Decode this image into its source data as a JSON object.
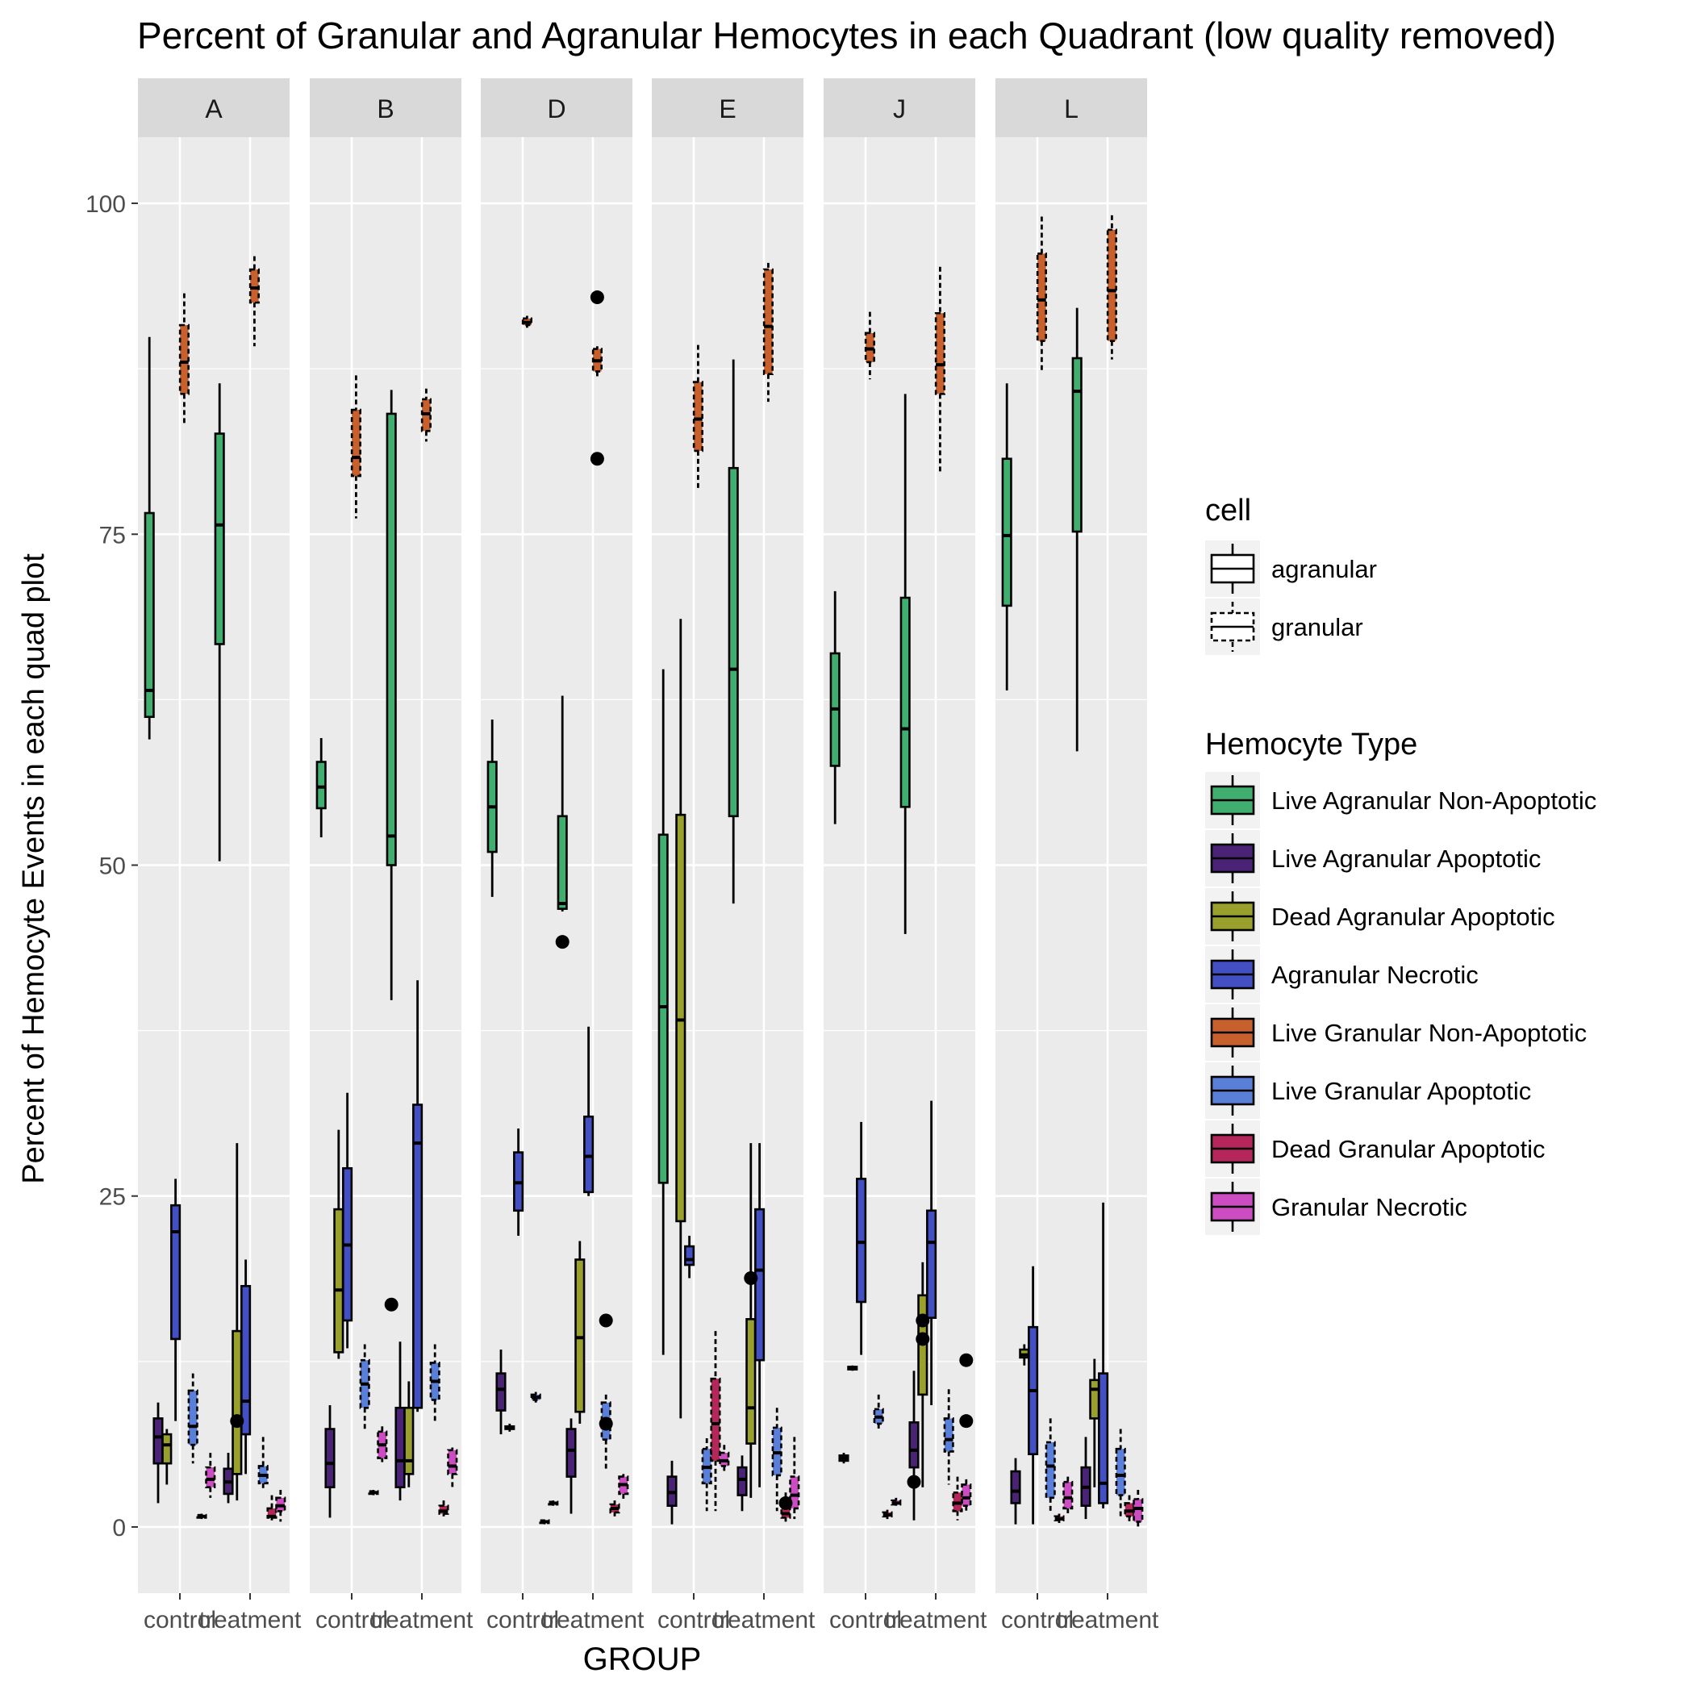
{
  "chart_data": {
    "type": "box",
    "title": "Percent of Granular and Agranular Hemocytes in each Quadrant (low quality removed)",
    "xlabel": "GROUP",
    "ylabel": "Percent of Hemocyte Events in each quad plot",
    "ylim": [
      -5,
      105
    ],
    "yticks": [
      0,
      25,
      50,
      75,
      100
    ],
    "grid": true,
    "legend_position": "right",
    "groups": [
      "control",
      "treatment"
    ],
    "facets": [
      "A",
      "B",
      "D",
      "E",
      "J",
      "L"
    ],
    "legend_cell": {
      "title": "cell",
      "items": [
        {
          "label": "agranular",
          "linetype": "solid"
        },
        {
          "label": "granular",
          "linetype": "dashed"
        }
      ]
    },
    "legend_type": {
      "title": "Hemocyte Type",
      "items": [
        {
          "label": "Live Agranular Non-Apoptotic",
          "color": "#3FAE6E",
          "cell": "agranular"
        },
        {
          "label": "Live Agranular Apoptotic",
          "color": "#4A2377",
          "cell": "agranular"
        },
        {
          "label": "Dead Agranular Apoptotic",
          "color": "#9AA02C",
          "cell": "agranular"
        },
        {
          "label": "Agranular Necrotic",
          "color": "#4350C4",
          "cell": "agranular"
        },
        {
          "label": "Live Granular Non-Apoptotic",
          "color": "#C8602E",
          "cell": "granular"
        },
        {
          "label": "Live Granular Apoptotic",
          "color": "#5A7FD9",
          "cell": "granular"
        },
        {
          "label": "Dead Granular Apoptotic",
          "color": "#B5275A",
          "cell": "granular"
        },
        {
          "label": "Granular Necrotic",
          "color": "#CC4DC2",
          "cell": "granular"
        }
      ]
    },
    "series_stats_note": "stats per type: [min, q1, median, q3, max] for control then treatment; outliers listed separately",
    "panels": [
      {
        "facet": "A",
        "control": [
          [
            59.5,
            61.2,
            63.2,
            76.6,
            89.9
          ],
          [
            1.8,
            4.8,
            6.8,
            8.2,
            9.4
          ],
          [
            3.2,
            4.8,
            6.2,
            7.0,
            7.4
          ],
          [
            8.0,
            14.2,
            22.3,
            24.3,
            26.3
          ],
          [
            83.4,
            85.6,
            88.0,
            90.8,
            93.2
          ],
          [
            4.8,
            6.2,
            7.6,
            10.3,
            11.6
          ],
          [
            0.6,
            0.7,
            0.8,
            0.9,
            1.0
          ],
          [
            2.2,
            3.0,
            3.6,
            4.5,
            5.6
          ]
        ],
        "treatment": [
          [
            50.3,
            66.7,
            75.7,
            82.6,
            86.4
          ],
          [
            1.8,
            2.5,
            3.4,
            4.4,
            5.6
          ],
          [
            2.0,
            4.0,
            8.0,
            14.8,
            29.0
          ],
          [
            4.0,
            7.0,
            9.5,
            18.2,
            20.2
          ],
          [
            89.2,
            92.5,
            93.6,
            95.0,
            96.0
          ],
          [
            2.8,
            3.3,
            3.9,
            4.6,
            6.8
          ],
          [
            0.5,
            0.7,
            0.8,
            1.4,
            2.4
          ],
          [
            0.4,
            1.2,
            1.6,
            2.2,
            2.8
          ]
        ],
        "outliers": [
          {
            "group": "treatment",
            "type": 2,
            "value": 8.0
          }
        ]
      },
      {
        "facet": "B",
        "control": [
          [
            52.1,
            54.3,
            55.9,
            57.8,
            59.6
          ],
          [
            0.7,
            3.0,
            4.8,
            7.4,
            9.2
          ],
          [
            12.7,
            13.2,
            17.9,
            24.0,
            30.0
          ],
          [
            13.5,
            15.6,
            21.3,
            27.1,
            32.8
          ],
          [
            76.2,
            79.4,
            80.8,
            84.4,
            87.0
          ],
          [
            7.4,
            9.0,
            10.8,
            12.6,
            13.8
          ],
          [
            2.4,
            2.5,
            2.6,
            2.7,
            2.8
          ],
          [
            4.9,
            5.2,
            6.2,
            7.2,
            7.6
          ]
        ],
        "treatment": [
          [
            39.8,
            50.0,
            52.2,
            84.1,
            85.9
          ],
          [
            2.0,
            3.0,
            5.0,
            9.0,
            14.0
          ],
          [
            3.0,
            4.0,
            5.0,
            9.0,
            11.0
          ],
          [
            8.7,
            9.0,
            29.0,
            31.9,
            41.3
          ],
          [
            82.0,
            82.8,
            84.1,
            85.2,
            86.0
          ],
          [
            8.0,
            9.6,
            11.0,
            12.4,
            13.8
          ],
          [
            0.8,
            1.0,
            1.2,
            1.6,
            2.0
          ],
          [
            3.0,
            4.0,
            4.6,
            5.8,
            6.0
          ]
        ],
        "outliers": [
          {
            "group": "treatment",
            "type": 0,
            "value": 16.8
          }
        ]
      },
      {
        "facet": "D",
        "control": [
          [
            47.6,
            51.0,
            54.4,
            57.8,
            61.0
          ],
          [
            7.0,
            8.8,
            10.4,
            11.6,
            13.4
          ],
          [
            7.2,
            7.4,
            7.5,
            7.6,
            7.8
          ],
          [
            22.0,
            23.9,
            26.0,
            28.3,
            30.1
          ],
          [
            90.6,
            90.8,
            91.0,
            91.3,
            91.5
          ],
          [
            9.4,
            9.6,
            9.8,
            10.0,
            10.2
          ],
          [
            0.2,
            0.3,
            0.4,
            0.5,
            0.5
          ],
          [
            1.6,
            1.7,
            1.8,
            1.9,
            2.0
          ]
        ],
        "treatment": [
          [
            46.5,
            46.7,
            47.1,
            53.7,
            62.8
          ],
          [
            1.0,
            3.8,
            5.8,
            7.4,
            8.2
          ],
          [
            7.8,
            8.7,
            14.3,
            20.2,
            21.6
          ],
          [
            25.0,
            25.3,
            28.0,
            31.0,
            37.8
          ],
          [
            86.9,
            87.3,
            88.1,
            89.0,
            89.2
          ],
          [
            4.4,
            6.6,
            7.8,
            9.4,
            10.0
          ],
          [
            0.8,
            1.1,
            1.4,
            1.7,
            2.0
          ],
          [
            2.0,
            2.5,
            3.2,
            3.8,
            4.0
          ]
        ],
        "outliers": [
          {
            "group": "treatment",
            "type": 4,
            "value": 92.9
          },
          {
            "group": "treatment",
            "type": 4,
            "value": 80.7
          },
          {
            "group": "treatment",
            "type": 0,
            "value": 44.2
          },
          {
            "group": "treatment",
            "type": 5,
            "value": 15.6
          },
          {
            "group": "treatment",
            "type": 5,
            "value": 7.8
          }
        ]
      },
      {
        "facet": "E",
        "control": [
          [
            13.0,
            26.0,
            39.3,
            52.3,
            64.8
          ],
          [
            0.2,
            1.6,
            2.6,
            3.8,
            5.0
          ],
          [
            8.2,
            23.1,
            38.3,
            53.8,
            68.6
          ],
          [
            18.8,
            19.8,
            20.2,
            21.2,
            22.0
          ],
          [
            78.5,
            81.3,
            83.7,
            86.5,
            89.3
          ],
          [
            1.2,
            3.3,
            4.5,
            5.9,
            6.7
          ],
          [
            1.2,
            5.0,
            7.8,
            11.2,
            14.8
          ],
          [
            4.0,
            4.6,
            5.0,
            5.6,
            6.2
          ]
        ],
        "treatment": [
          [
            47.1,
            53.7,
            64.8,
            80.0,
            88.2
          ],
          [
            1.2,
            2.4,
            3.6,
            4.5,
            5.4
          ],
          [
            2.2,
            6.3,
            9.0,
            15.7,
            29.0
          ],
          [
            3.0,
            12.6,
            19.4,
            24.0,
            29.0
          ],
          [
            85.0,
            87.1,
            90.7,
            95.0,
            95.5
          ],
          [
            1.2,
            3.9,
            5.6,
            7.5,
            9.0
          ],
          [
            0.4,
            0.7,
            1.0,
            1.6,
            2.6
          ],
          [
            0.6,
            1.4,
            2.4,
            3.8,
            6.8
          ]
        ],
        "outliers": [
          {
            "group": "treatment",
            "type": 2,
            "value": 18.8
          },
          {
            "group": "treatment",
            "type": 6,
            "value": 1.8
          }
        ]
      },
      {
        "facet": "J",
        "control": [
          [
            53.1,
            57.5,
            61.8,
            66.0,
            70.7
          ],
          [
            4.8,
            5.0,
            5.2,
            5.4,
            5.6
          ],
          [
            11.8,
            11.9,
            12.0,
            12.1,
            12.2
          ],
          [
            13.0,
            17.0,
            21.5,
            26.3,
            30.6
          ],
          [
            86.7,
            88.0,
            89.0,
            90.2,
            91.8
          ],
          [
            7.2,
            7.8,
            8.3,
            8.9,
            10.0
          ],
          [
            0.6,
            0.8,
            0.9,
            1.1,
            1.3
          ],
          [
            1.6,
            1.7,
            1.8,
            2.0,
            2.2
          ]
        ],
        "treatment": [
          [
            44.8,
            54.4,
            60.3,
            70.2,
            85.6
          ],
          [
            0.5,
            4.5,
            5.8,
            7.9,
            11.8
          ],
          [
            3.0,
            10.0,
            14.0,
            17.5,
            20.0
          ],
          [
            9.2,
            15.8,
            21.5,
            23.9,
            32.2
          ],
          [
            79.6,
            85.6,
            87.8,
            91.7,
            95.2
          ],
          [
            3.2,
            5.7,
            6.6,
            8.2,
            10.4
          ],
          [
            0.5,
            1.2,
            1.8,
            2.6,
            3.8
          ],
          [
            1.0,
            1.6,
            2.2,
            3.2,
            3.6
          ]
        ],
        "outliers": [
          {
            "group": "treatment",
            "type": 2,
            "value": 15.6
          },
          {
            "group": "treatment",
            "type": 2,
            "value": 14.2
          },
          {
            "group": "treatment",
            "type": 1,
            "value": 3.4
          },
          {
            "group": "treatment",
            "type": 7,
            "value": 12.6
          },
          {
            "group": "treatment",
            "type": 7,
            "value": 8.0
          }
        ]
      },
      {
        "facet": "L",
        "control": [
          [
            63.2,
            69.6,
            74.9,
            80.7,
            86.4
          ],
          [
            0.2,
            1.8,
            2.7,
            4.2,
            5.2
          ],
          [
            12.2,
            12.8,
            13.0,
            13.4,
            13.8
          ],
          [
            0.2,
            5.5,
            10.3,
            15.1,
            19.7
          ],
          [
            87.4,
            89.6,
            92.7,
            96.2,
            99.0
          ],
          [
            1.2,
            2.2,
            4.6,
            6.4,
            8.2
          ],
          [
            0.3,
            0.5,
            0.6,
            0.8,
            1.0
          ],
          [
            0.8,
            1.4,
            2.2,
            3.4,
            3.8
          ]
        ],
        "treatment": [
          [
            58.6,
            75.2,
            85.8,
            88.3,
            92.1
          ],
          [
            0.6,
            1.6,
            3.0,
            4.5,
            6.8
          ],
          [
            3.0,
            8.2,
            10.4,
            11.1,
            12.7
          ],
          [
            1.4,
            1.8,
            3.3,
            11.6,
            24.5
          ],
          [
            88.2,
            89.6,
            93.4,
            98.0,
            99.1
          ],
          [
            0.8,
            2.4,
            3.9,
            5.9,
            7.4
          ],
          [
            0.4,
            0.8,
            1.2,
            1.8,
            2.4
          ],
          [
            0.0,
            0.4,
            1.4,
            2.1,
            2.8
          ]
        ],
        "outliers": []
      }
    ]
  }
}
